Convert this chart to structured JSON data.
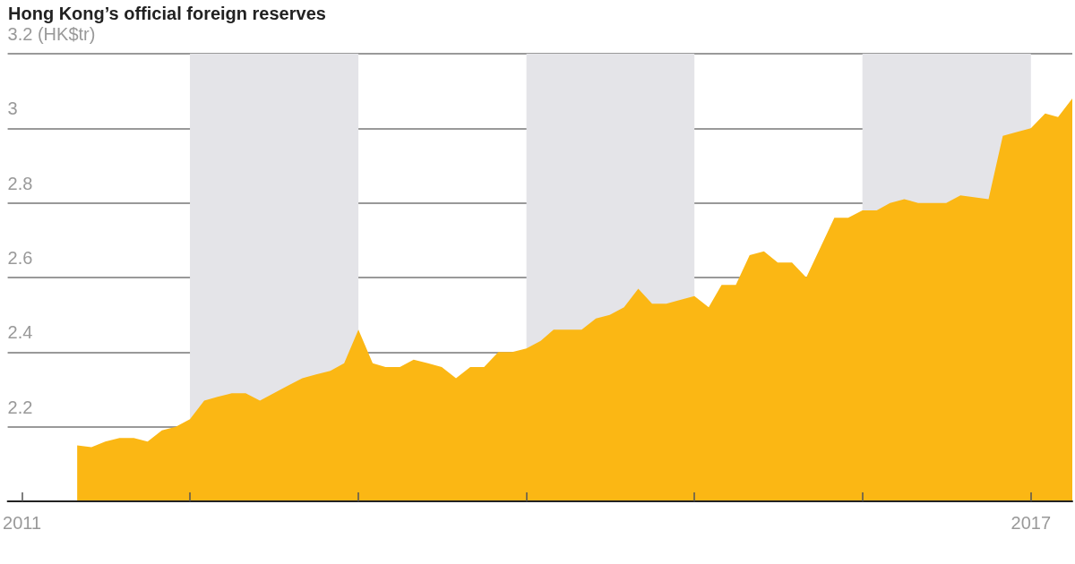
{
  "chart_data": {
    "type": "area",
    "title": "Hong Kong’s official foreign reserves",
    "x": [
      "2011-05",
      "2011-06",
      "2011-07",
      "2011-08",
      "2011-09",
      "2011-10",
      "2011-11",
      "2011-12",
      "2012-01",
      "2012-02",
      "2012-03",
      "2012-04",
      "2012-05",
      "2012-06",
      "2012-07",
      "2012-08",
      "2012-09",
      "2012-10",
      "2012-11",
      "2012-12",
      "2013-01",
      "2013-02",
      "2013-03",
      "2013-04",
      "2013-05",
      "2013-06",
      "2013-07",
      "2013-08",
      "2013-09",
      "2013-10",
      "2013-11",
      "2013-12",
      "2014-01",
      "2014-02",
      "2014-03",
      "2014-05",
      "2014-06",
      "2014-07",
      "2014-08",
      "2014-09",
      "2014-10",
      "2014-11",
      "2014-12",
      "2015-01",
      "2015-02",
      "2015-03",
      "2015-04",
      "2015-05",
      "2015-06",
      "2015-07",
      "2015-08",
      "2015-09",
      "2015-11",
      "2015-12",
      "2016-01",
      "2016-02",
      "2016-03",
      "2016-04",
      "2016-05",
      "2016-07",
      "2016-08",
      "2016-10",
      "2016-11",
      "2016-12",
      "2017-01",
      "2017-02",
      "2017-03",
      "2017-04"
    ],
    "series": [
      {
        "color": "#fbb714",
        "values": [
          2.15,
          2.145,
          2.16,
          2.17,
          2.17,
          2.16,
          2.19,
          2.2,
          2.22,
          2.27,
          2.28,
          2.29,
          2.29,
          2.27,
          2.29,
          2.31,
          2.33,
          2.34,
          2.35,
          2.37,
          2.46,
          2.37,
          2.36,
          2.36,
          2.38,
          2.37,
          2.36,
          2.33,
          2.36,
          2.36,
          2.4,
          2.4,
          2.41,
          2.43,
          2.46,
          2.46,
          2.49,
          2.5,
          2.52,
          2.57,
          2.53,
          2.53,
          2.54,
          2.55,
          2.52,
          2.58,
          2.58,
          2.66,
          2.67,
          2.64,
          2.64,
          2.6,
          2.76,
          2.76,
          2.78,
          2.78,
          2.8,
          2.81,
          2.8,
          2.8,
          2.82,
          2.81,
          2.98,
          2.99,
          3.0,
          3.04,
          3.03,
          3.08
        ]
      }
    ],
    "xlim": [
      "2010-12",
      "2017-04"
    ],
    "xticks": [
      {
        "value": "2011-01",
        "label": "2011"
      },
      {
        "value": "2012-01",
        "label": null
      },
      {
        "value": "2013-01",
        "label": null
      },
      {
        "value": "2014-01",
        "label": null
      },
      {
        "value": "2015-01",
        "label": null
      },
      {
        "value": "2016-01",
        "label": null
      },
      {
        "value": "2017-01",
        "label": "2017"
      }
    ],
    "ylim": [
      2.0,
      3.2
    ],
    "yticks": [
      {
        "value": 2.0,
        "label": null
      },
      2.2,
      2.4,
      2.6,
      2.8,
      3,
      {
        "value": 3.2,
        "label": "3.2 (HK$tr)"
      }
    ],
    "bands": [
      {
        "axis": "x",
        "from": "2012-01",
        "to": "2013-01",
        "color": "#e4e4e8"
      },
      {
        "axis": "x",
        "from": "2014-01",
        "to": "2015-01",
        "color": "#e4e4e8"
      },
      {
        "axis": "x",
        "from": "2016-01",
        "to": "2017-01",
        "color": "#e4e4e8"
      }
    ],
    "grid": "y"
  }
}
